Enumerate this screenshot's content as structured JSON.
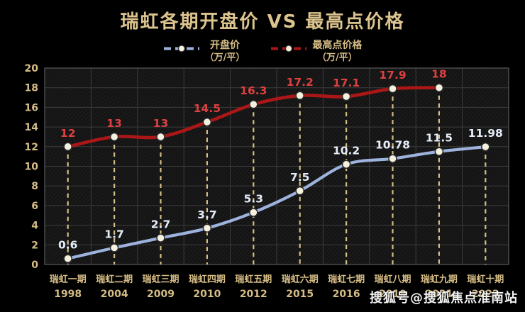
{
  "chart_data": {
    "type": "line",
    "title": "瑞虹各期开盘价 VS 最高点价格",
    "categories": [
      {
        "name": "瑞虹一期",
        "year": "1998"
      },
      {
        "name": "瑞虹二期",
        "year": "2004"
      },
      {
        "name": "瑞虹三期",
        "year": "2009"
      },
      {
        "name": "瑞虹四期",
        "year": "2010"
      },
      {
        "name": "瑞虹五期",
        "year": "2012"
      },
      {
        "name": "瑞虹六期",
        "year": "2015"
      },
      {
        "name": "瑞虹七期",
        "year": "2016"
      },
      {
        "name": "瑞虹八期",
        "year": "2019"
      },
      {
        "name": "瑞虹九期",
        "year": "2021"
      },
      {
        "name": "瑞虹十期",
        "year": "2022"
      }
    ],
    "series": [
      {
        "name": "开盘价",
        "unit": "（万/平）",
        "color": "#9db3dd",
        "label_color": "#e6edf9",
        "values": [
          0.6,
          1.7,
          2.7,
          3.7,
          5.3,
          7.5,
          10.2,
          10.78,
          11.5,
          11.98
        ]
      },
      {
        "name": "最高点价格",
        "unit": "（万/平）",
        "color": "#ab1717",
        "label_color": "#dd4040",
        "values": [
          12,
          13,
          13,
          14.5,
          16.3,
          17.2,
          17.1,
          17.9,
          18,
          null
        ]
      }
    ],
    "ylim": [
      0,
      20
    ],
    "ytick_step": 2,
    "grid": true,
    "legend_position": "top-center",
    "axis_text_color": "#d6bd85",
    "dropline_color": "#d2bf84",
    "marker_fill": "#f6f1de",
    "marker_stroke": "#2b2b2b",
    "grid_color": "#3c3c3c",
    "plot_border_color": "#5a5a5a",
    "background": "#000000"
  },
  "watermark": {
    "text": "搜狐号@搜狐焦点淮南站"
  }
}
